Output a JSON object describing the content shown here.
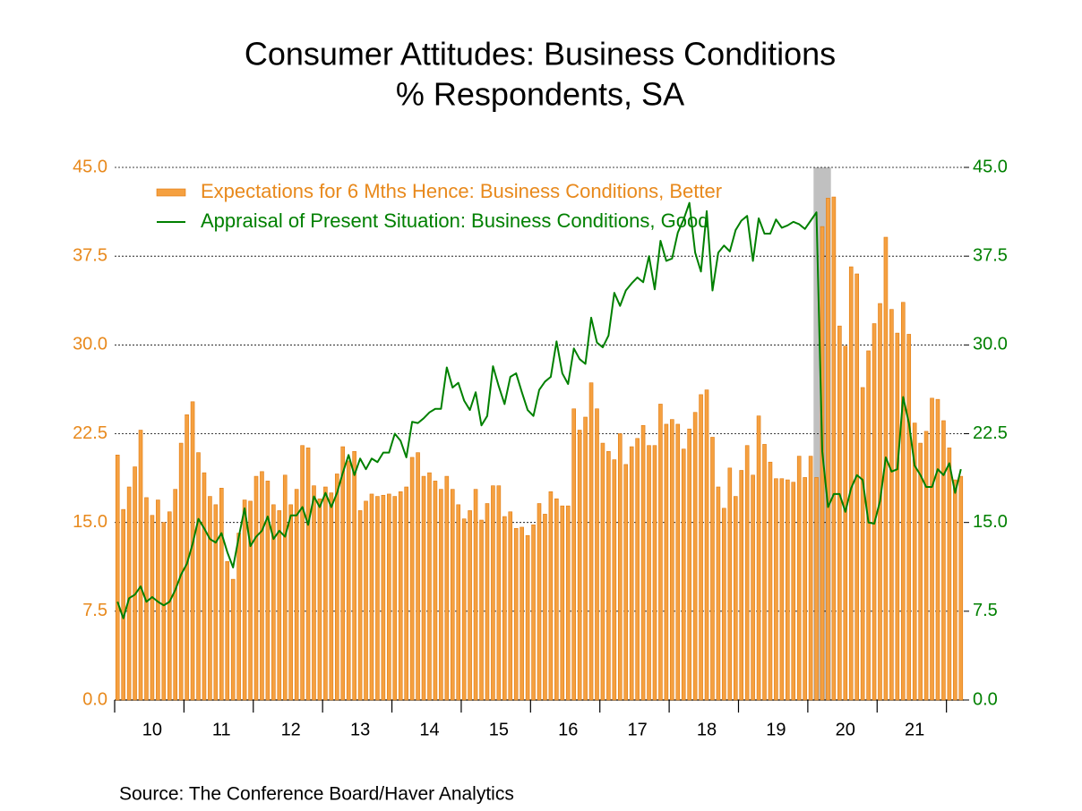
{
  "chart_data": {
    "type": "bar",
    "title": "Consumer Attitudes: Business Conditions",
    "subtitle": "% Respondents, SA",
    "source": "Source:  The Conference Board/Haver Analytics",
    "categories": [
      null,
      null,
      null,
      null,
      null,
      null,
      "10",
      null,
      null,
      null,
      null,
      null,
      null,
      null,
      null,
      null,
      null,
      null,
      "11",
      null,
      null,
      null,
      null,
      null,
      null,
      null,
      null,
      null,
      null,
      null,
      "12",
      null,
      null,
      null,
      null,
      null,
      null,
      null,
      null,
      null,
      null,
      null,
      "13",
      null,
      null,
      null,
      null,
      null,
      null,
      null,
      null,
      null,
      null,
      null,
      "14",
      null,
      null,
      null,
      null,
      null,
      null,
      null,
      null,
      null,
      null,
      null,
      "15",
      null,
      null,
      null,
      null,
      null,
      null,
      null,
      null,
      null,
      null,
      null,
      "16",
      null,
      null,
      null,
      null,
      null,
      null,
      null,
      null,
      null,
      null,
      null,
      "17",
      null,
      null,
      null,
      null,
      null,
      null,
      null,
      null,
      null,
      null,
      null,
      "18",
      null,
      null,
      null,
      null,
      null,
      null,
      null,
      null,
      null,
      null,
      null,
      "19",
      null,
      null,
      null,
      null,
      null,
      null,
      null,
      null,
      null,
      null,
      null,
      "20",
      null,
      null,
      null,
      null,
      null,
      null,
      null,
      null,
      null,
      null,
      null,
      "21",
      null,
      null,
      null,
      null,
      null,
      null,
      null,
      null
    ],
    "series": [
      {
        "name": "Expectations for 6 Mths Hence: Business Conditions, Better",
        "type": "bar",
        "color": "#f5a040",
        "values": [
          20.7,
          16.1,
          18.0,
          19.7,
          22.8,
          17.1,
          15.6,
          16.9,
          15.0,
          15.9,
          17.8,
          21.7,
          24.1,
          25.2,
          20.9,
          19.2,
          17.2,
          16.5,
          17.9,
          11.7,
          10.2,
          14.1,
          16.9,
          16.8,
          18.9,
          19.3,
          18.5,
          16.5,
          16.0,
          19.0,
          16.5,
          17.8,
          21.5,
          21.3,
          18.1,
          17.0,
          18.0,
          17.5,
          19.1,
          21.4,
          20.2,
          21.0,
          16.0,
          16.8,
          17.4,
          17.2,
          17.3,
          17.4,
          17.2,
          17.6,
          18.0,
          20.5,
          20.9,
          18.9,
          19.2,
          18.5,
          17.8,
          18.9,
          17.8,
          16.5,
          15.3,
          16.0,
          17.8,
          15.2,
          16.6,
          18.1,
          18.1,
          15.5,
          15.9,
          14.5,
          14.6,
          13.9,
          14.8,
          16.6,
          15.7,
          17.6,
          17.0,
          16.4,
          16.4,
          24.6,
          22.8,
          23.9,
          26.8,
          24.6,
          21.7,
          21.0,
          20.3,
          22.5,
          19.9,
          21.4,
          22.1,
          23.2,
          21.5,
          21.5,
          25.0,
          23.3,
          23.7,
          23.3,
          21.2,
          22.9,
          24.3,
          25.8,
          26.2,
          22.2,
          18.0,
          16.2,
          19.6,
          17.2,
          19.4,
          21.5,
          19.0,
          24.0,
          21.6,
          20.1,
          18.7,
          18.7,
          18.6,
          18.4,
          20.6,
          18.8,
          20.6,
          18.8,
          40.0,
          42.4,
          42.5,
          31.6,
          29.9,
          36.6,
          36.0,
          26.4,
          29.5,
          31.8,
          33.5,
          39.1,
          33.0,
          31.0,
          33.6,
          30.9,
          23.4,
          21.7,
          22.7,
          25.5,
          25.4,
          23.6,
          21.3,
          18.6,
          18.9
        ]
      },
      {
        "name": "Appraisal of Present Situation: Business Conditions, Good",
        "type": "line",
        "axis": "y2",
        "color": "#008000",
        "values": [
          8.3,
          6.9,
          8.6,
          8.9,
          9.6,
          8.3,
          8.7,
          8.3,
          8.0,
          8.3,
          9.3,
          10.6,
          11.5,
          13.2,
          15.3,
          14.5,
          13.6,
          13.3,
          14.1,
          12.5,
          11.2,
          13.8,
          16.2,
          13.0,
          13.8,
          14.3,
          15.5,
          13.6,
          14.3,
          13.8,
          15.6,
          15.6,
          16.3,
          14.8,
          17.2,
          16.3,
          17.5,
          16.3,
          17.5,
          19.2,
          20.7,
          19.0,
          20.4,
          19.5,
          20.4,
          20.1,
          20.9,
          20.9,
          22.5,
          21.9,
          20.5,
          23.5,
          23.4,
          23.8,
          24.3,
          24.6,
          24.6,
          28.1,
          26.4,
          26.8,
          25.3,
          24.5,
          26.0,
          23.2,
          24.0,
          28.2,
          26.5,
          25.0,
          27.3,
          27.6,
          26.0,
          24.5,
          24.0,
          26.2,
          26.9,
          27.3,
          30.3,
          27.6,
          26.7,
          29.7,
          28.8,
          28.4,
          32.3,
          30.2,
          29.8,
          30.8,
          34.4,
          33.3,
          34.6,
          35.2,
          35.7,
          35.3,
          37.5,
          34.7,
          38.8,
          37.1,
          37.3,
          39.5,
          40.6,
          42.0,
          37.8,
          36.2,
          41.3,
          34.6,
          37.8,
          38.4,
          37.9,
          39.7,
          40.5,
          40.9,
          37.1,
          40.7,
          39.4,
          39.4,
          40.6,
          39.9,
          40.1,
          40.4,
          40.2,
          39.8,
          40.5,
          41.2,
          21.0,
          16.3,
          17.4,
          17.4,
          15.9,
          17.9,
          19.0,
          18.6,
          15.0,
          14.9,
          16.8,
          20.5,
          19.3,
          19.5,
          25.6,
          23.4,
          19.8,
          19.0,
          18.0,
          18.0,
          19.5,
          19.0,
          20.0,
          17.5,
          19.5
        ]
      }
    ],
    "recession_shading": [
      {
        "from": 121,
        "to": 123,
        "color": "#c0c0c0"
      }
    ],
    "ylim": [
      0,
      45
    ],
    "yticks": [
      {
        "value": 0,
        "label": "0.0"
      },
      7.5,
      {
        "value": 15,
        "label": "15.0"
      },
      22.5,
      {
        "value": 30,
        "label": "30.0"
      },
      37.5,
      {
        "value": 45,
        "label": "45.0"
      }
    ],
    "y2lim": [
      0,
      45
    ],
    "y2ticks": [
      {
        "value": 0,
        "label": "0.0"
      },
      7.5,
      {
        "value": 15,
        "label": "15.0"
      },
      22.5,
      {
        "value": 30,
        "label": "30.0"
      },
      37.5,
      {
        "value": 45,
        "label": "45.0"
      }
    ],
    "grid": true,
    "legend": "top-left"
  }
}
